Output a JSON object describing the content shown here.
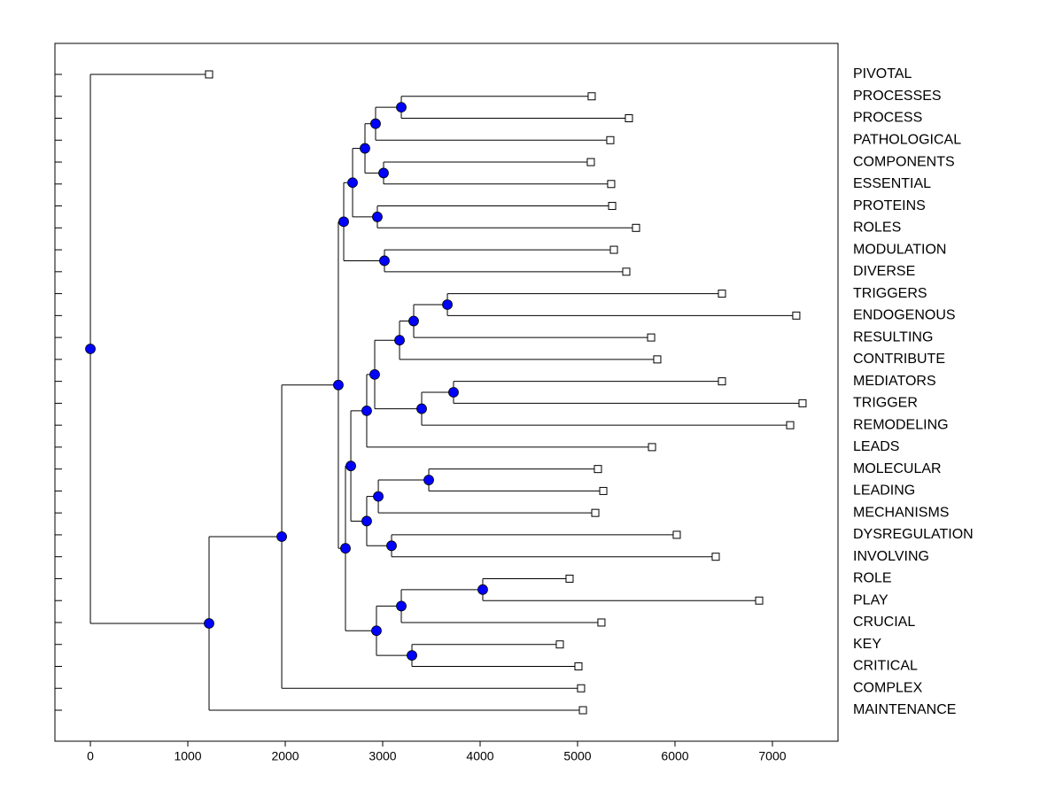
{
  "chart_data": {
    "type": "dendrogram",
    "xlim": [
      -364,
      7673
    ],
    "xticks": [
      0,
      1000,
      2000,
      3000,
      4000,
      5000,
      6000,
      7000
    ],
    "node_color": "#0000ff",
    "tree": {
      "x": 0,
      "children": [
        {
          "label": "PIVOTAL",
          "x": 1218
        },
        {
          "x": 1218,
          "children": [
            {
              "x": 1964,
              "children": [
                {
                  "x": 2545,
                  "children": [
                    {
                      "x": 2600,
                      "children": [
                        {
                          "x": 2691,
                          "children": [
                            {
                              "x": 2818,
                              "children": [
                                {
                                  "x": 2927,
                                  "children": [
                                    {
                                      "x": 3191,
                                      "children": [
                                        {
                                          "label": "PROCESSES",
                                          "x": 5145
                                        },
                                        {
                                          "label": "PROCESS",
                                          "x": 5527
                                        }
                                      ]
                                    },
                                    {
                                      "label": "PATHOLOGICAL",
                                      "x": 5336
                                    }
                                  ]
                                },
                                {
                                  "x": 3009,
                                  "children": [
                                    {
                                      "label": "COMPONENTS",
                                      "x": 5136
                                    },
                                    {
                                      "label": "ESSENTIAL",
                                      "x": 5345
                                    }
                                  ]
                                }
                              ]
                            },
                            {
                              "x": 2945,
                              "children": [
                                {
                                  "label": "PROTEINS",
                                  "x": 5355
                                },
                                {
                                  "label": "ROLES",
                                  "x": 5600
                                }
                              ]
                            }
                          ]
                        },
                        {
                          "x": 3018,
                          "children": [
                            {
                              "label": "MODULATION",
                              "x": 5373
                            },
                            {
                              "label": "DIVERSE",
                              "x": 5500
                            }
                          ]
                        }
                      ]
                    },
                    {
                      "x": 2618,
                      "children": [
                        {
                          "x": 2673,
                          "children": [
                            {
                              "x": 2836,
                              "children": [
                                {
                                  "x": 2918,
                                  "children": [
                                    {
                                      "x": 3173,
                                      "children": [
                                        {
                                          "x": 3318,
                                          "children": [
                                            {
                                              "x": 3664,
                                              "children": [
                                                {
                                                  "label": "TRIGGERS",
                                                  "x": 6482
                                                },
                                                {
                                                  "label": "ENDOGENOUS",
                                                  "x": 7245
                                                }
                                              ]
                                            },
                                            {
                                              "label": "RESULTING",
                                              "x": 5755
                                            }
                                          ]
                                        },
                                        {
                                          "label": "CONTRIBUTE",
                                          "x": 5818
                                        }
                                      ]
                                    },
                                    {
                                      "x": 3400,
                                      "children": [
                                        {
                                          "x": 3727,
                                          "children": [
                                            {
                                              "label": "MEDIATORS",
                                              "x": 6482
                                            },
                                            {
                                              "label": "TRIGGER",
                                              "x": 7309
                                            }
                                          ]
                                        },
                                        {
                                          "label": "REMODELING",
                                          "x": 7182
                                        }
                                      ]
                                    }
                                  ]
                                },
                                {
                                  "label": "LEADS",
                                  "x": 5764
                                }
                              ]
                            },
                            {
                              "x": 2836,
                              "children": [
                                {
                                  "x": 2955,
                                  "children": [
                                    {
                                      "x": 3473,
                                      "children": [
                                        {
                                          "label": "MOLECULAR",
                                          "x": 5209
                                        },
                                        {
                                          "label": "LEADING",
                                          "x": 5264
                                        }
                                      ]
                                    },
                                    {
                                      "label": "MECHANISMS",
                                      "x": 5182
                                    }
                                  ]
                                },
                                {
                                  "x": 3091,
                                  "children": [
                                    {
                                      "label": "DYSREGULATION",
                                      "x": 6018
                                    },
                                    {
                                      "label": "INVOLVING",
                                      "x": 6418
                                    }
                                  ]
                                }
                              ]
                            }
                          ]
                        },
                        {
                          "x": 2936,
                          "children": [
                            {
                              "x": 3191,
                              "children": [
                                {
                                  "x": 4027,
                                  "children": [
                                    {
                                      "label": "ROLE",
                                      "x": 4918
                                    },
                                    {
                                      "label": "PLAY",
                                      "x": 6864
                                    }
                                  ]
                                },
                                {
                                  "label": "CRUCIAL",
                                  "x": 5245
                                }
                              ]
                            },
                            {
                              "x": 3300,
                              "children": [
                                {
                                  "label": "KEY",
                                  "x": 4818
                                },
                                {
                                  "label": "CRITICAL",
                                  "x": 5009
                                }
                              ]
                            }
                          ]
                        }
                      ]
                    }
                  ]
                },
                {
                  "label": "COMPLEX",
                  "x": 5036
                }
              ]
            },
            {
              "label": "MAINTENANCE",
              "x": 5055
            }
          ]
        }
      ]
    }
  }
}
